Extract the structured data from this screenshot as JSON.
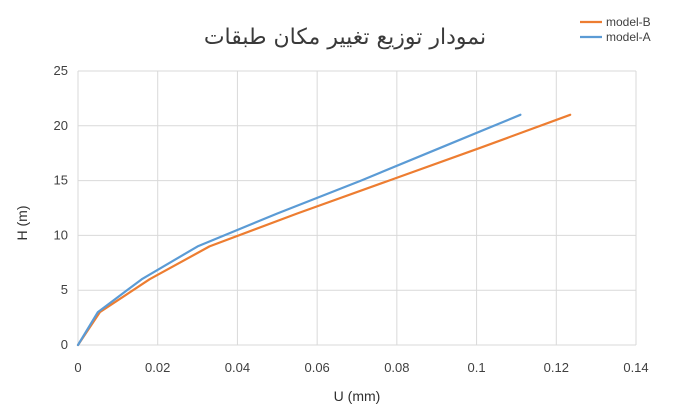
{
  "chart_data": {
    "type": "line",
    "title": "نمودار توزیع تغییر مکان طبقات",
    "xlabel": "U (mm)",
    "ylabel": "H (m)",
    "xlim": [
      0,
      0.14
    ],
    "ylim": [
      0,
      25
    ],
    "xticks": [
      "0",
      "0.02",
      "0.04",
      "0.06",
      "0.08",
      "0.1",
      "0.12",
      "0.14"
    ],
    "yticks": [
      "0",
      "5",
      "10",
      "15",
      "20",
      "25"
    ],
    "grid": true,
    "legend_position": "top-right",
    "series": [
      {
        "name": "model-B",
        "color": "#ed7d31",
        "points": [
          [
            0,
            0
          ],
          [
            0.0055,
            3
          ],
          [
            0.018,
            6
          ],
          [
            0.033,
            9
          ],
          [
            0.055,
            12
          ],
          [
            0.078,
            15
          ],
          [
            0.101,
            18
          ],
          [
            0.1235,
            21
          ]
        ]
      },
      {
        "name": "model-A",
        "color": "#5b9bd5",
        "points": [
          [
            0,
            0
          ],
          [
            0.005,
            3
          ],
          [
            0.016,
            6
          ],
          [
            0.03,
            9
          ],
          [
            0.05,
            12
          ],
          [
            0.071,
            15
          ],
          [
            0.091,
            18
          ],
          [
            0.111,
            21
          ]
        ]
      }
    ]
  }
}
